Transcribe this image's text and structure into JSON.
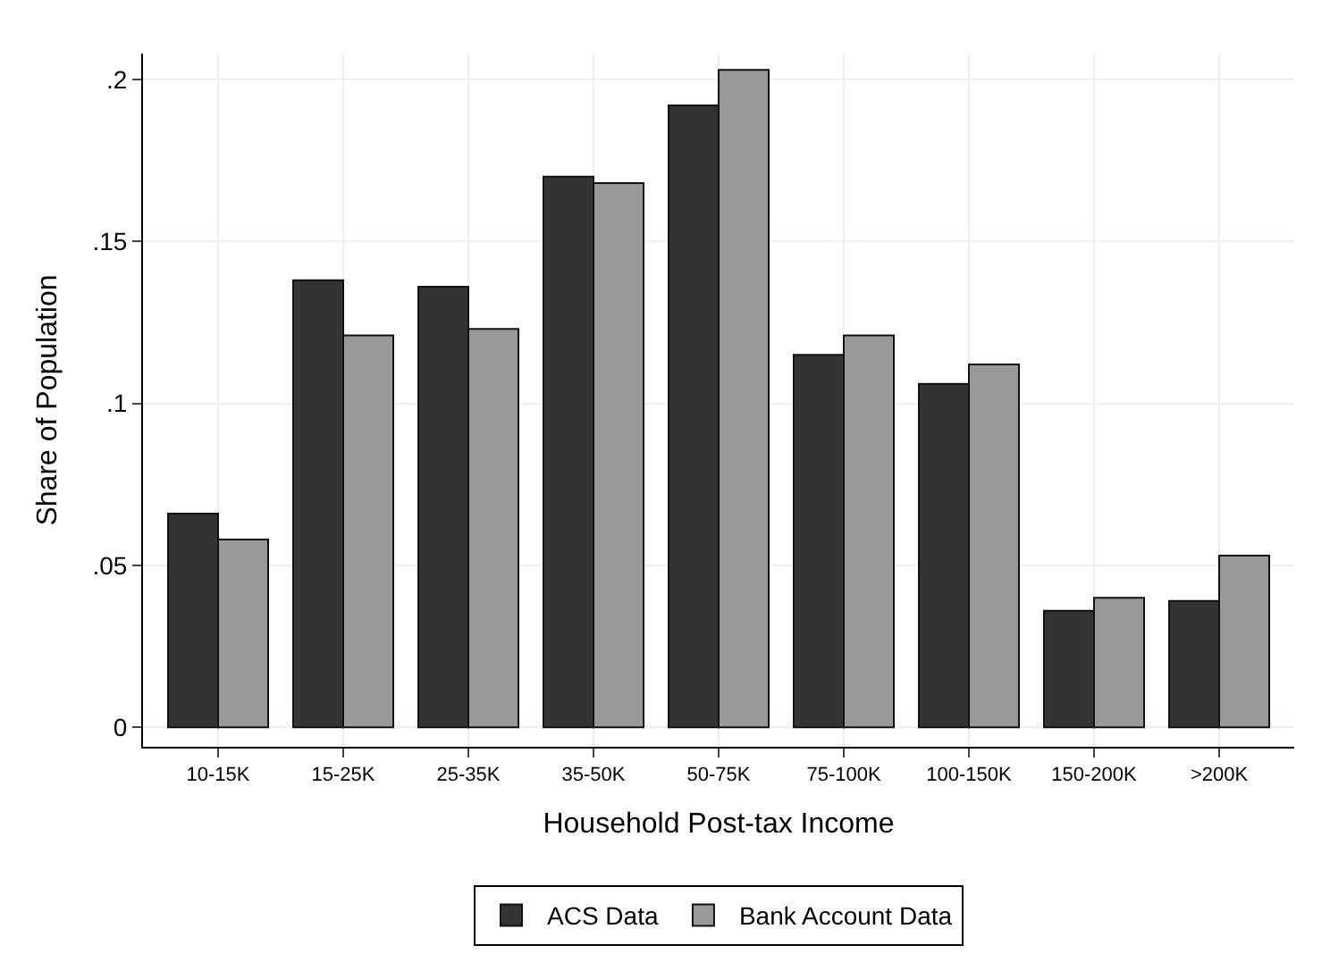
{
  "chart_data": {
    "type": "bar",
    "xlabel": "Household Post-tax Income",
    "ylabel": "Share of Population",
    "categories": [
      "10-15K",
      "15-25K",
      "25-35K",
      "35-50K",
      "50-75K",
      "75-100K",
      "100-150K",
      "150-200K",
      ">200K"
    ],
    "series": [
      {
        "name": "ACS Data",
        "color": "#333333",
        "values": [
          0.066,
          0.138,
          0.136,
          0.17,
          0.192,
          0.115,
          0.106,
          0.036,
          0.039
        ]
      },
      {
        "name": "Bank Account Data",
        "color": "#999999",
        "values": [
          0.058,
          0.121,
          0.123,
          0.168,
          0.203,
          0.121,
          0.112,
          0.04,
          0.053
        ]
      }
    ],
    "ylim": [
      -0.006,
      0.208
    ],
    "yticks": [
      {
        "value": 0,
        "label": "0"
      },
      {
        "value": 0.05,
        "label": ".05"
      },
      {
        "value": 0.1,
        "label": ".1"
      },
      {
        "value": 0.15,
        "label": ".15"
      },
      {
        "value": 0.2,
        "label": ".2"
      }
    ],
    "grid": true,
    "legend": "bottom"
  }
}
